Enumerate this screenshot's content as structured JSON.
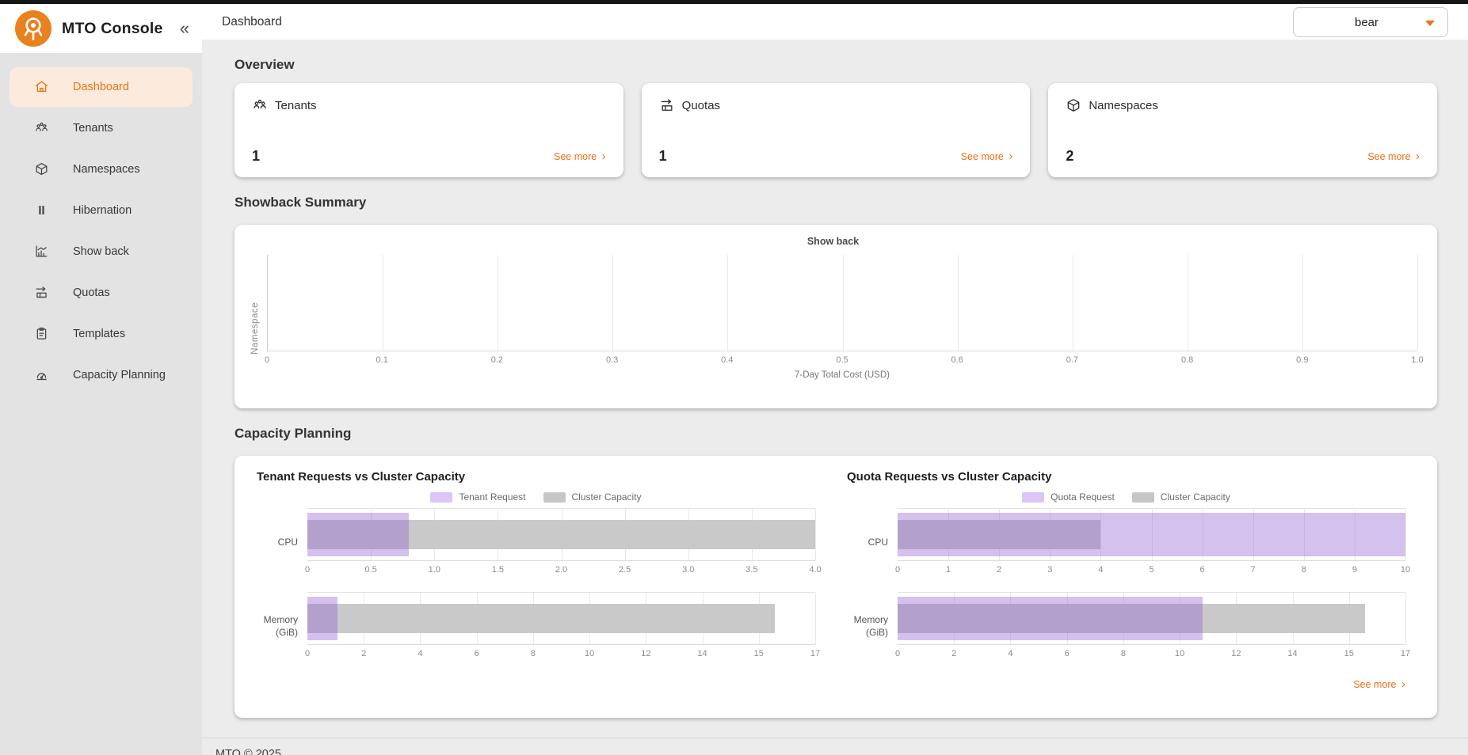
{
  "colors": {
    "brand_orange": "#ED7117",
    "active_item_bg": "#FCEBDC",
    "request_purple": "#DBC6F5",
    "capacity_gray": "#C9C9C9"
  },
  "sidebar": {
    "brand": "MTO Console",
    "collapse_icon": "«",
    "items": [
      {
        "label": "Dashboard",
        "icon": "home-icon",
        "active": true
      },
      {
        "label": "Tenants",
        "icon": "tenants-icon",
        "active": false
      },
      {
        "label": "Namespaces",
        "icon": "namespaces-icon",
        "active": false
      },
      {
        "label": "Hibernation",
        "icon": "hibernation-icon",
        "active": false
      },
      {
        "label": "Show back",
        "icon": "showback-icon",
        "active": false
      },
      {
        "label": "Quotas",
        "icon": "quotas-icon",
        "active": false
      },
      {
        "label": "Templates",
        "icon": "templates-icon",
        "active": false
      },
      {
        "label": "Capacity Planning",
        "icon": "capacity-planning-icon",
        "active": false
      }
    ]
  },
  "topbar": {
    "title": "Dashboard",
    "tenant_selector": "bear"
  },
  "overview": {
    "heading": "Overview",
    "cards": [
      {
        "title": "Tenants",
        "icon": "tenants-icon",
        "value": "1",
        "link": "See more"
      },
      {
        "title": "Quotas",
        "icon": "quotas-icon",
        "value": "1",
        "link": "See more"
      },
      {
        "title": "Namespaces",
        "icon": "namespaces-icon",
        "value": "2",
        "link": "See more"
      }
    ]
  },
  "showback": {
    "heading": "Showback Summary",
    "chart_data": {
      "type": "bar",
      "orientation": "horizontal",
      "title": "Show back",
      "xlabel": "7-Day Total Cost (USD)",
      "ylabel": "Namespace",
      "categories": [],
      "values": [],
      "xticks": [
        "0",
        "0.1",
        "0.2",
        "0.3",
        "0.4",
        "0.5",
        "0.6",
        "0.7",
        "0.8",
        "0.9",
        "1.0"
      ],
      "xlim": [
        0,
        1.0
      ],
      "grid": "vertical"
    }
  },
  "capacity": {
    "heading": "Capacity Planning",
    "see_more": "See more",
    "chart_data": [
      {
        "type": "bar",
        "orientation": "horizontal",
        "title": "Tenant Requests vs Cluster Capacity",
        "legend": [
          "Tenant Request",
          "Cluster Capacity"
        ],
        "rows": [
          {
            "label": "CPU",
            "xticks": [
              "0",
              "0.5",
              "1.0",
              "1.5",
              "2.0",
              "2.5",
              "3.0",
              "3.5",
              "4.0"
            ],
            "series": [
              {
                "name": "Tenant Request",
                "value": 0.8,
                "pct": 20
              },
              {
                "name": "Cluster Capacity",
                "value": 4.0,
                "pct": 100
              }
            ]
          },
          {
            "label": "Memory (GiB)",
            "xticks": [
              "0",
              "2",
              "4",
              "6",
              "8",
              "10",
              "12",
              "14",
              "15",
              "17"
            ],
            "series": [
              {
                "name": "Tenant Request",
                "value": 1.0,
                "pct": 6
              },
              {
                "name": "Cluster Capacity",
                "value": 15.6,
                "pct": 92
              }
            ]
          }
        ]
      },
      {
        "type": "bar",
        "orientation": "horizontal",
        "title": "Quota Requests vs Cluster Capacity",
        "legend": [
          "Quota Request",
          "Cluster Capacity"
        ],
        "rows": [
          {
            "label": "CPU",
            "xticks": [
              "0",
              "1",
              "2",
              "3",
              "4",
              "5",
              "6",
              "7",
              "8",
              "9",
              "10"
            ],
            "series": [
              {
                "name": "Quota Request",
                "value": 10.0,
                "pct": 100
              },
              {
                "name": "Cluster Capacity",
                "value": 4.0,
                "pct": 40
              }
            ]
          },
          {
            "label": "Memory (GiB)",
            "xticks": [
              "0",
              "2",
              "4",
              "6",
              "8",
              "10",
              "12",
              "14",
              "15",
              "17"
            ],
            "series": [
              {
                "name": "Quota Request",
                "value": 10.7,
                "pct": 60
              },
              {
                "name": "Cluster Capacity",
                "value": 15.6,
                "pct": 92
              }
            ]
          }
        ]
      }
    ]
  },
  "footer": {
    "text": "MTO © 2025"
  }
}
